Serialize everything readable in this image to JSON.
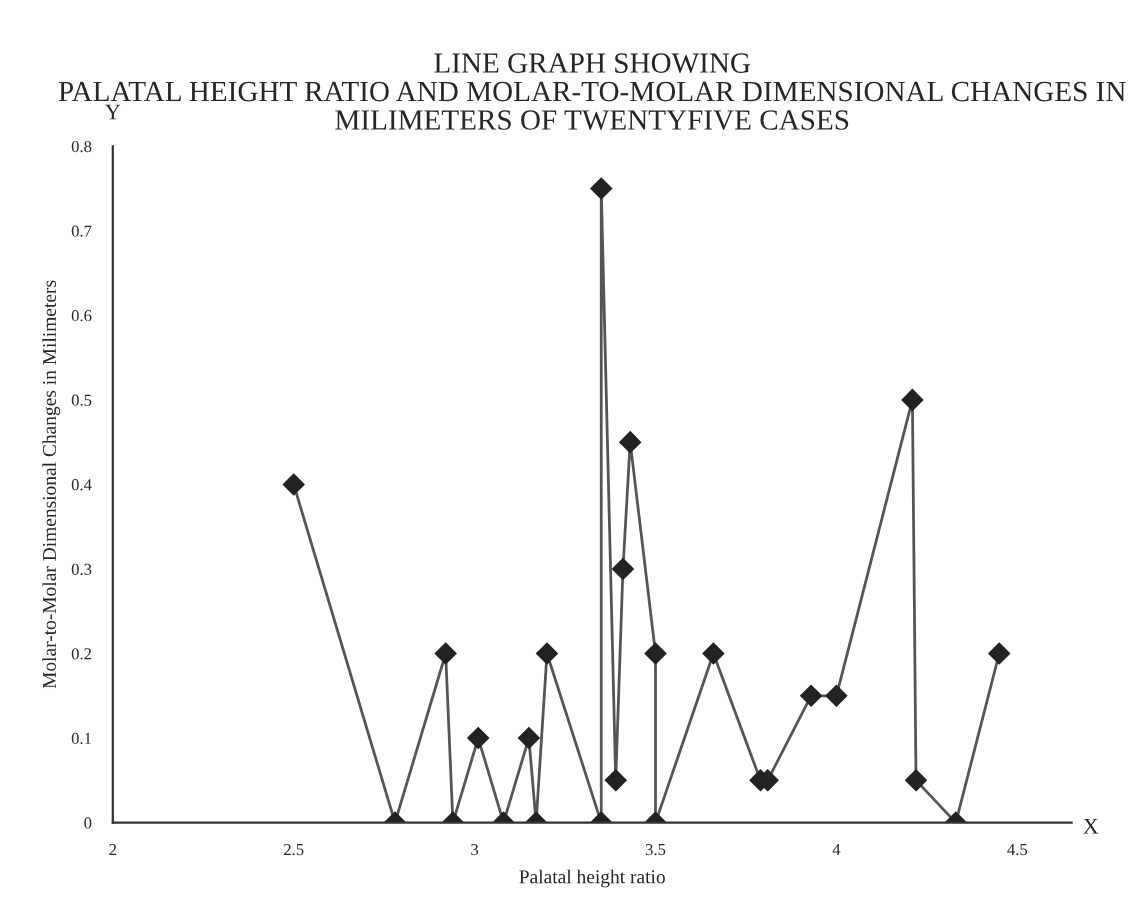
{
  "chart_data": {
    "type": "line",
    "title": "LINE GRAPH SHOWING\nPALATAL HEIGHT RATIO AND MOLAR-TO-MOLAR DIMENSIONAL CHANGES IN\nMILIMETERS OF TWENTYFIVE CASES",
    "xlabel": "Palatal height ratio",
    "ylabel": "Molar-to-Molar Dimensional Changes in Milimeters",
    "annotations": [
      "X",
      "Y"
    ],
    "x": [
      2.5,
      2.78,
      2.92,
      2.94,
      3.01,
      3.08,
      3.15,
      3.17,
      3.2,
      3.35,
      3.35,
      3.39,
      3.41,
      3.43,
      3.5,
      3.5,
      3.66,
      3.79,
      3.81,
      3.93,
      4.0,
      4.21,
      4.22,
      4.33,
      4.45
    ],
    "series": [
      {
        "color": "#555555",
        "values": [
          0.4,
          0,
          0.2,
          0,
          0.1,
          0,
          0.1,
          0,
          0.2,
          0,
          0.75,
          0.05,
          0.3,
          0.45,
          0.2,
          0,
          0.2,
          0.05,
          0.05,
          0.15,
          0.15,
          0.5,
          0.05,
          0,
          0.2
        ]
      }
    ],
    "marker": "diamond",
    "line_style": "solid",
    "grid": false,
    "legend": false,
    "xlim": [
      2,
      4.65
    ],
    "ylim": [
      0,
      0.8
    ],
    "xticks": [
      2,
      2.5,
      3,
      3.5,
      4,
      4.5
    ],
    "yticks": [
      0,
      0.1,
      0.2,
      0.3,
      0.4,
      0.5,
      0.6,
      0.7,
      0.8
    ]
  }
}
